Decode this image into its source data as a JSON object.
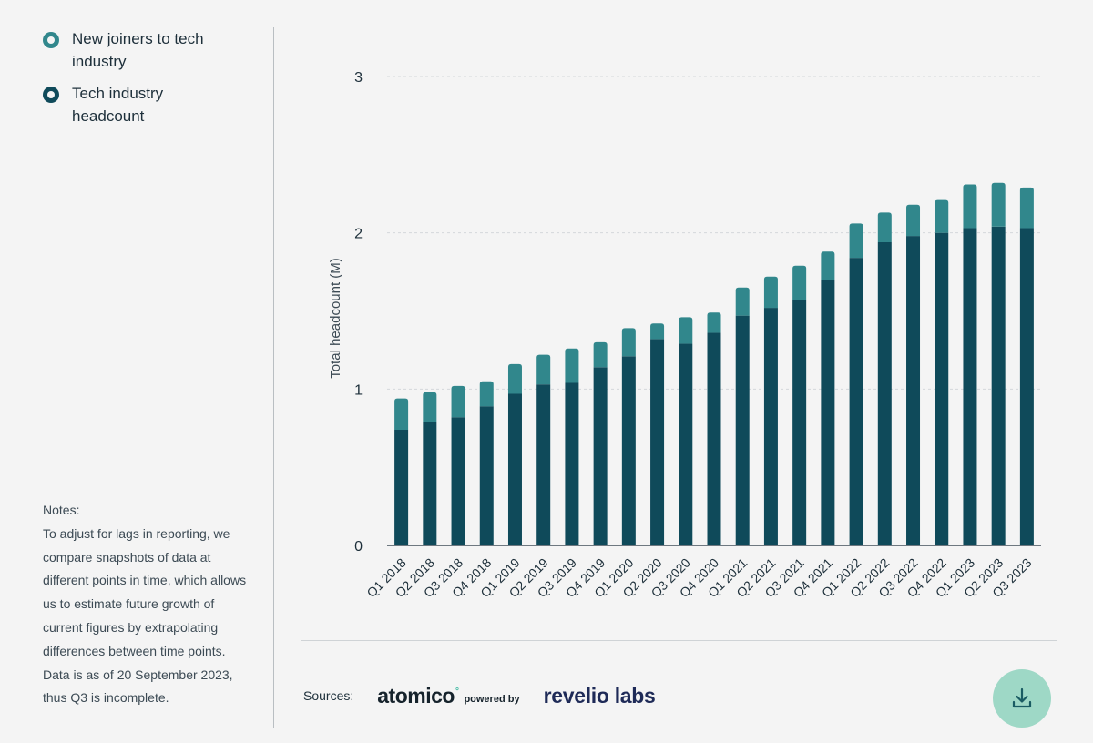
{
  "legend": {
    "items": [
      {
        "label": "New joiners to tech industry",
        "color": "#31878c"
      },
      {
        "label": "Tech industry headcount",
        "color": "#0f4a5a"
      }
    ]
  },
  "notes": {
    "title": "Notes:",
    "body": "To adjust for lags in reporting, we compare snapshots of data at different points in time, which allows us to estimate future growth of current figures by extrapolating differences between time points. Data is as of 20 September 2023, thus Q3 is incomplete."
  },
  "sources": {
    "label": "Sources:",
    "logo1": "atomico",
    "logo1_mark": "°",
    "powered_by": "powered by",
    "logo2": "revelio labs"
  },
  "download": {
    "icon": "download-icon"
  },
  "chart_data": {
    "type": "bar",
    "stacked": true,
    "ylabel": "Total headcount (M)",
    "xlabel": "",
    "ylim": [
      0,
      3
    ],
    "yticks": [
      0,
      1,
      2,
      3
    ],
    "grid": true,
    "legend_position": "top-left",
    "categories": [
      "Q1 2018",
      "Q2 2018",
      "Q3 2018",
      "Q4 2018",
      "Q1 2019",
      "Q2 2019",
      "Q3 2019",
      "Q4 2019",
      "Q1 2020",
      "Q2 2020",
      "Q3 2020",
      "Q4 2020",
      "Q1 2021",
      "Q2 2021",
      "Q3 2021",
      "Q4 2021",
      "Q1 2022",
      "Q2 2022",
      "Q3 2022",
      "Q4 2022",
      "Q1 2023",
      "Q2 2023",
      "Q3 2023"
    ],
    "series": [
      {
        "name": "Tech industry headcount",
        "color": "#0f4a5a",
        "values": [
          0.74,
          0.79,
          0.82,
          0.89,
          0.97,
          1.03,
          1.04,
          1.14,
          1.21,
          1.32,
          1.29,
          1.36,
          1.47,
          1.52,
          1.57,
          1.7,
          1.84,
          1.94,
          1.98,
          2.0,
          2.03,
          2.04,
          2.03
        ]
      },
      {
        "name": "New joiners to tech industry",
        "color": "#31878c",
        "values": [
          0.2,
          0.19,
          0.2,
          0.16,
          0.19,
          0.19,
          0.22,
          0.16,
          0.18,
          0.1,
          0.17,
          0.13,
          0.18,
          0.2,
          0.22,
          0.18,
          0.22,
          0.19,
          0.2,
          0.21,
          0.28,
          0.28,
          0.26
        ]
      }
    ]
  }
}
